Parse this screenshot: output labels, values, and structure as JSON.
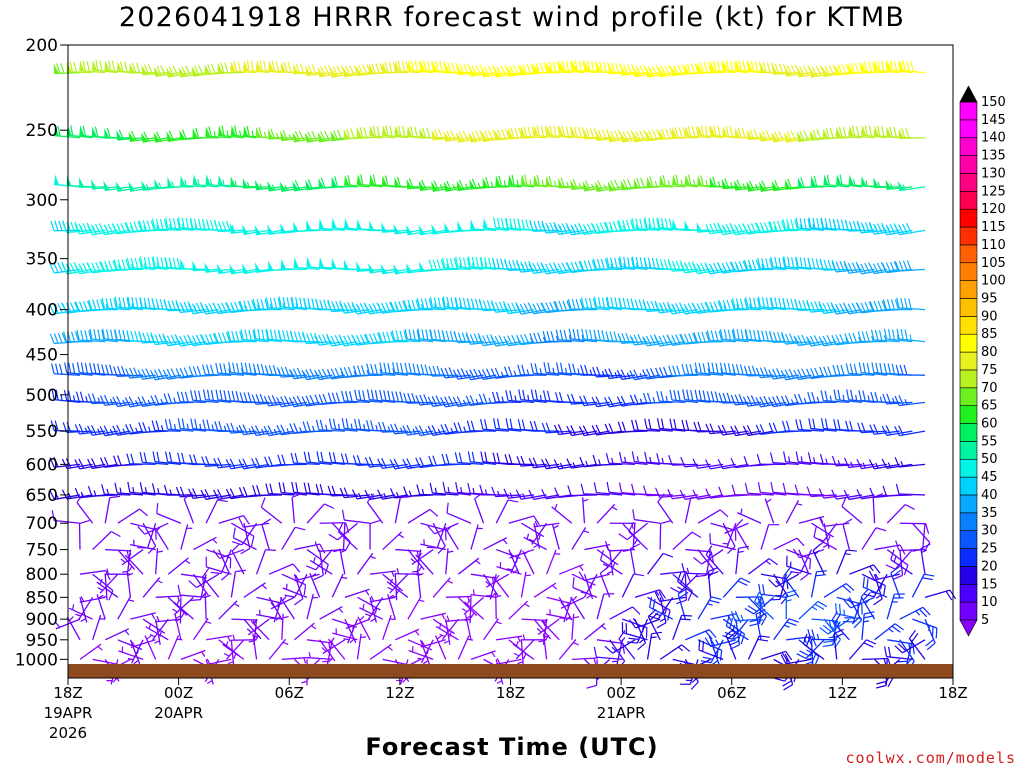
{
  "chart_data": {
    "type": "wind-barb-profile",
    "title": "2026041918 HRRR forecast wind profile (kt) for KTMB",
    "xlabel": "Forecast Time (UTC)",
    "credit": "coolwx.com/models",
    "y_axis": {
      "scale": "log",
      "reversed": true,
      "range": [
        200,
        1050
      ],
      "ticks": [
        200,
        250,
        300,
        350,
        400,
        450,
        500,
        550,
        600,
        650,
        700,
        750,
        800,
        850,
        900,
        950,
        1000
      ]
    },
    "x_axis": {
      "range": [
        "2026-04-19T18Z",
        "2026-04-21T18Z"
      ],
      "ticks": [
        {
          "label": "18Z",
          "sub1": "19APR",
          "sub2": "2026"
        },
        {
          "label": "00Z",
          "sub1": "20APR",
          "sub2": ""
        },
        {
          "label": "06Z",
          "sub1": "",
          "sub2": ""
        },
        {
          "label": "12Z",
          "sub1": "",
          "sub2": ""
        },
        {
          "label": "18Z",
          "sub1": "",
          "sub2": ""
        },
        {
          "label": "00Z",
          "sub1": "21APR",
          "sub2": ""
        },
        {
          "label": "06Z",
          "sub1": "",
          "sub2": ""
        },
        {
          "label": "12Z",
          "sub1": "",
          "sub2": ""
        },
        {
          "label": "18Z",
          "sub1": "",
          "sub2": ""
        }
      ]
    },
    "ground_color": "#8e4a1f",
    "colorbar": {
      "units": "kt",
      "levels": [
        5,
        10,
        15,
        20,
        25,
        30,
        35,
        40,
        45,
        50,
        55,
        60,
        65,
        70,
        75,
        80,
        85,
        90,
        95,
        100,
        105,
        110,
        115,
        120,
        125,
        130,
        135,
        140,
        145,
        150
      ],
      "colors": [
        "#8a00ff",
        "#7000ff",
        "#4b00ff",
        "#2400e8",
        "#0a2cff",
        "#0a56ff",
        "#0a80ff",
        "#0aa8ff",
        "#00d2ff",
        "#00f5e6",
        "#00f5a0",
        "#00f060",
        "#20f020",
        "#6cf020",
        "#b8f020",
        "#e8f020",
        "#ffff00",
        "#ffe000",
        "#ffc000",
        "#ffa000",
        "#ff8000",
        "#ff6000",
        "#ff3000",
        "#ff0000",
        "#ff0050",
        "#ff0080",
        "#ff00a8",
        "#ff00d0",
        "#ff00ff",
        "#000000"
      ]
    },
    "profiles": [
      {
        "p": 215,
        "speed_kt": [
          70,
          72,
          74,
          76,
          78,
          80,
          82,
          84,
          84,
          82,
          80,
          80,
          82
        ]
      },
      {
        "p": 255,
        "speed_kt": [
          58,
          60,
          62,
          66,
          70,
          74,
          78,
          80,
          80,
          78,
          76,
          74,
          72
        ]
      },
      {
        "p": 290,
        "speed_kt": [
          50,
          52,
          54,
          56,
          60,
          62,
          64,
          66,
          68,
          66,
          62,
          58,
          55
        ]
      },
      {
        "p": 325,
        "speed_kt": [
          45,
          46,
          47,
          48,
          50,
          50,
          48,
          44,
          46,
          48,
          46,
          44,
          42
        ]
      },
      {
        "p": 360,
        "speed_kt": [
          45,
          46,
          48,
          50,
          50,
          48,
          46,
          40,
          44,
          46,
          42,
          40,
          40
        ]
      },
      {
        "p": 400,
        "speed_kt": [
          42,
          43,
          44,
          45,
          45,
          44,
          42,
          38,
          42,
          44,
          42,
          40,
          40
        ]
      },
      {
        "p": 435,
        "speed_kt": [
          38,
          40,
          41,
          42,
          42,
          40,
          38,
          34,
          36,
          40,
          38,
          36,
          36
        ]
      },
      {
        "p": 475,
        "speed_kt": [
          28,
          30,
          32,
          34,
          34,
          32,
          28,
          26,
          24,
          34,
          32,
          32,
          30
        ]
      },
      {
        "p": 510,
        "speed_kt": [
          24,
          26,
          28,
          30,
          30,
          30,
          26,
          22,
          22,
          30,
          28,
          26,
          26
        ]
      },
      {
        "p": 550,
        "speed_kt": [
          22,
          24,
          26,
          26,
          26,
          26,
          22,
          20,
          18,
          20,
          20,
          22,
          22
        ]
      },
      {
        "p": 600,
        "speed_kt": [
          20,
          20,
          22,
          22,
          22,
          22,
          20,
          18,
          14,
          12,
          12,
          14,
          16
        ]
      },
      {
        "p": 650,
        "speed_kt": [
          16,
          16,
          18,
          18,
          18,
          16,
          14,
          12,
          10,
          8,
          8,
          10,
          12
        ]
      },
      {
        "p": 700,
        "speed_kt": [
          10,
          8,
          10,
          10,
          10,
          8,
          8,
          6,
          8,
          8,
          6,
          8,
          10
        ]
      },
      {
        "p": 750,
        "speed_kt": [
          8,
          6,
          8,
          8,
          8,
          6,
          6,
          5,
          8,
          10,
          8,
          8,
          10
        ]
      },
      {
        "p": 800,
        "speed_kt": [
          8,
          6,
          8,
          8,
          6,
          6,
          5,
          5,
          10,
          14,
          16,
          16,
          14
        ]
      },
      {
        "p": 850,
        "speed_kt": [
          6,
          6,
          8,
          6,
          6,
          5,
          5,
          5,
          14,
          20,
          22,
          22,
          20
        ]
      },
      {
        "p": 900,
        "speed_kt": [
          6,
          6,
          6,
          6,
          5,
          5,
          5,
          5,
          18,
          24,
          26,
          26,
          22
        ]
      },
      {
        "p": 950,
        "speed_kt": [
          6,
          5,
          5,
          5,
          5,
          5,
          5,
          5,
          18,
          22,
          24,
          24,
          20
        ]
      },
      {
        "p": 1000,
        "speed_kt": [
          5,
          5,
          5,
          5,
          5,
          5,
          5,
          5,
          15,
          18,
          20,
          20,
          18
        ]
      }
    ]
  }
}
